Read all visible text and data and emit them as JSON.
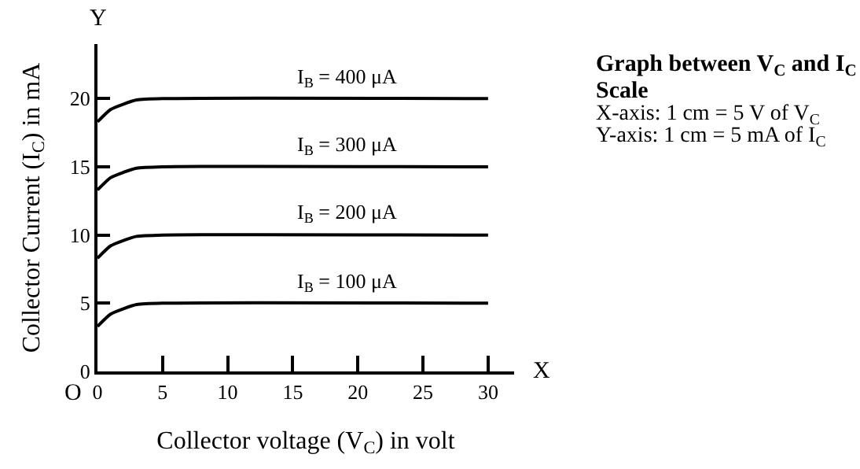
{
  "chart_data": {
    "type": "line",
    "title": "Graph between V$_{C}$ and I$_{C}$",
    "subtitle": "Scale",
    "xlabel": "Collector voltage (V$_{C}$) in volt",
    "ylabel": "Collector Current (I$_{C}$) in mA",
    "annotations": [
      "X-axis: 1 cm = 5 V of V$_{C}$",
      "Y-axis: 1 cm = 5 mA of I$_{C}$",
      "Y",
      "X",
      "O"
    ],
    "x": [
      0,
      1,
      2,
      3,
      5,
      30
    ],
    "series": [
      {
        "name": "I$_{B}$ = 100 μA",
        "color": "#000000",
        "values": [
          3.3,
          4.2,
          4.6,
          4.9,
          5,
          5
        ]
      },
      {
        "name": "I$_{B}$ = 200 μA",
        "color": "#000000",
        "values": [
          8.3,
          9.2,
          9.6,
          9.9,
          10,
          10
        ]
      },
      {
        "name": "I$_{B}$ = 300 μA",
        "color": "#000000",
        "values": [
          13.3,
          14.2,
          14.6,
          14.9,
          15,
          15
        ]
      },
      {
        "name": "I$_{B}$ = 400 μA",
        "color": "#000000",
        "values": [
          18.3,
          19.2,
          19.6,
          19.9,
          20,
          20
        ]
      }
    ],
    "xlim": [
      0,
      32
    ],
    "ylim": [
      0,
      24
    ],
    "xticks": [
      0,
      5,
      10,
      15,
      20,
      25,
      30
    ],
    "yticks": [
      0,
      5,
      10,
      15,
      20
    ],
    "legend": false,
    "marker": "none",
    "line_style": "solid"
  }
}
